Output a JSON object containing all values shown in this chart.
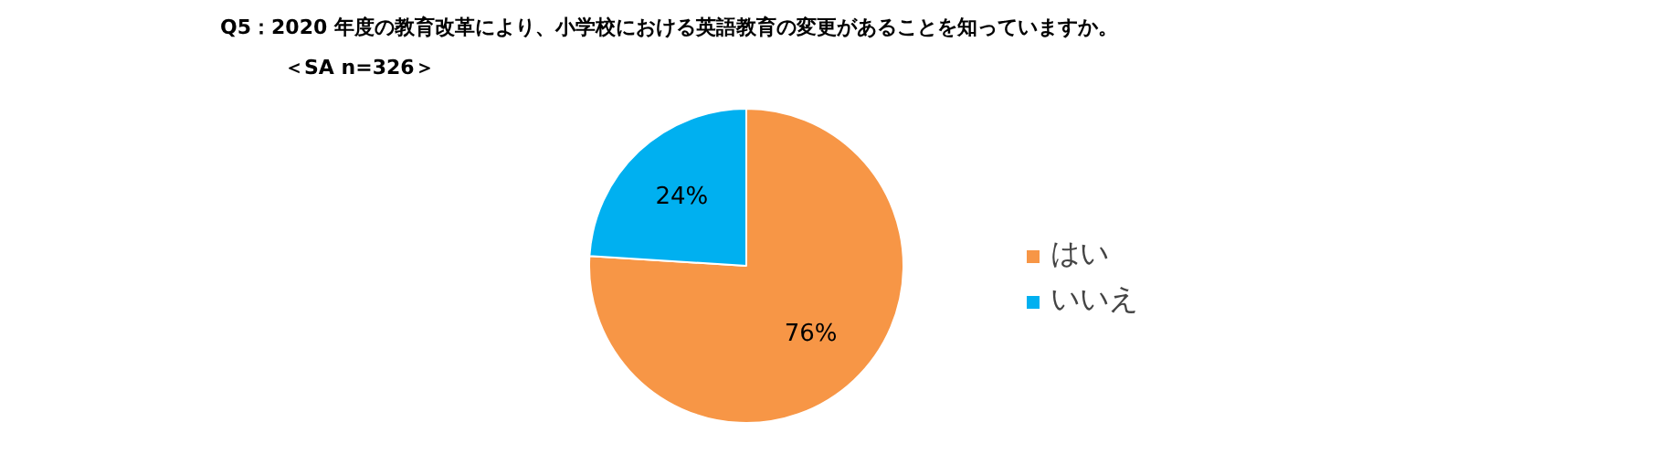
{
  "chart_data": {
    "type": "pie",
    "title": "Q5：2020 年度の教育改革により、小学校における英語教育の変更があることを知っていますか。",
    "subtitle": "＜SA n=326＞",
    "categories": [
      "はい",
      "いいえ"
    ],
    "values": [
      76,
      24
    ],
    "colors": [
      "#f79646",
      "#00b0f0"
    ],
    "value_labels": [
      "76%",
      "24%"
    ],
    "legend": "right"
  }
}
